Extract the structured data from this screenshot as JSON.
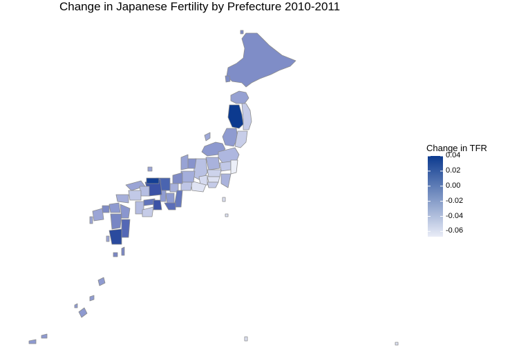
{
  "title": "Change in Japanese Fertility by Prefecture 2010-2011",
  "colors": {
    "low": "#e9ecf7",
    "high": "#0c3a8f",
    "border": "#8c8c8c",
    "background": "#ffffff"
  },
  "legend": {
    "title": "Change in TFR",
    "min": -0.067,
    "max": 0.04,
    "tick_values": [
      0.04,
      0.02,
      0.0,
      -0.02,
      -0.04,
      -0.06
    ],
    "tick_labels": [
      "0.04",
      "0.02",
      "0.00",
      "-0.02",
      "-0.04",
      "-0.06"
    ]
  }
}
